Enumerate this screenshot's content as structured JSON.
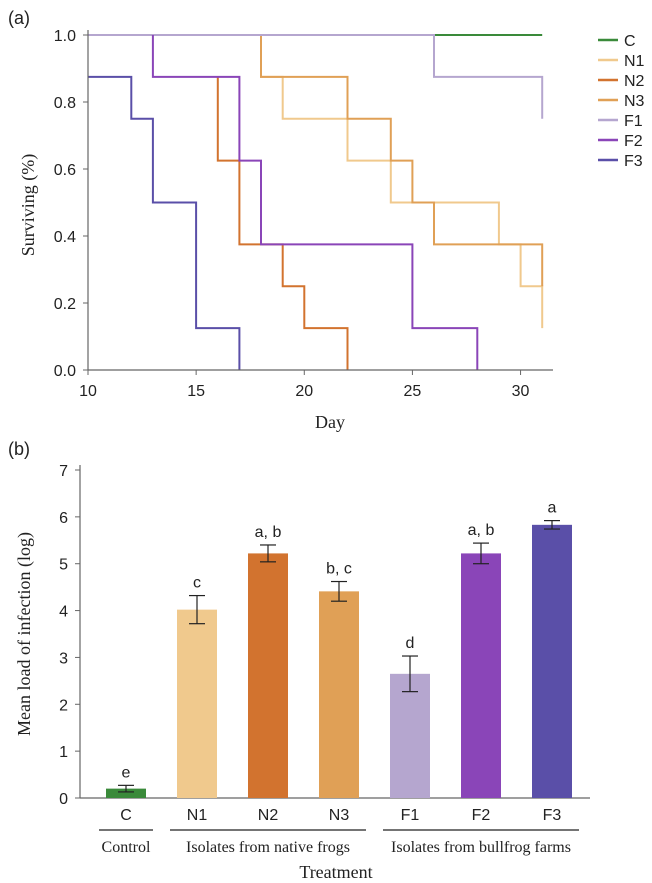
{
  "colors": {
    "C": "#3a8a3a",
    "N1": "#f0c98d",
    "N2": "#d2732f",
    "N3": "#e0a056",
    "F1": "#b5a6cf",
    "F2": "#8a45b8",
    "F3": "#5a4fa8"
  },
  "chart_data": [
    {
      "panel_label": "(a)",
      "type": "line",
      "xlabel": "Day",
      "ylabel": "Surviving (%)",
      "xlim": [
        10,
        31.5
      ],
      "ylim": [
        0,
        1.0
      ],
      "xticks": [
        10,
        15,
        20,
        25,
        30
      ],
      "yticks": [
        "0.0",
        "0.2",
        "0.4",
        "0.6",
        "0.8",
        "1.0"
      ],
      "legend_position": "right",
      "series": [
        {
          "name": "C",
          "color": "#3a8a3a",
          "steps": [
            [
              10,
              1.0
            ],
            [
              31,
              1.0
            ]
          ]
        },
        {
          "name": "N1",
          "color": "#f0c98d",
          "steps": [
            [
              18,
              1.0
            ],
            [
              18,
              0.875
            ],
            [
              19,
              0.875
            ],
            [
              19,
              0.75
            ],
            [
              22,
              0.75
            ],
            [
              22,
              0.625
            ],
            [
              24,
              0.625
            ],
            [
              24,
              0.5
            ],
            [
              26,
              0.5
            ],
            [
              29,
              0.5
            ],
            [
              29,
              0.375
            ],
            [
              30,
              0.375
            ],
            [
              30,
              0.25
            ],
            [
              31,
              0.25
            ],
            [
              31,
              0.125
            ]
          ]
        },
        {
          "name": "N2",
          "color": "#d2732f",
          "steps": [
            [
              16,
              0.875
            ],
            [
              16,
              0.625
            ],
            [
              17,
              0.625
            ],
            [
              17,
              0.375
            ],
            [
              19,
              0.375
            ],
            [
              19,
              0.25
            ],
            [
              20,
              0.25
            ],
            [
              20,
              0.125
            ],
            [
              22,
              0.125
            ],
            [
              22,
              0.0
            ]
          ]
        },
        {
          "name": "N3",
          "color": "#e0a056",
          "steps": [
            [
              18,
              1.0
            ],
            [
              18,
              0.875
            ],
            [
              22,
              0.875
            ],
            [
              22,
              0.75
            ],
            [
              24,
              0.75
            ],
            [
              24,
              0.625
            ],
            [
              25,
              0.625
            ],
            [
              25,
              0.5
            ],
            [
              26,
              0.5
            ],
            [
              26,
              0.375
            ],
            [
              31,
              0.375
            ],
            [
              31,
              0.25
            ]
          ]
        },
        {
          "name": "F1",
          "color": "#b5a6cf",
          "steps": [
            [
              10,
              1.0
            ],
            [
              26,
              1.0
            ],
            [
              26,
              0.875
            ],
            [
              31,
              0.875
            ],
            [
              31,
              0.75
            ]
          ]
        },
        {
          "name": "F2",
          "color": "#8a45b8",
          "steps": [
            [
              13,
              1.0
            ],
            [
              13,
              0.875
            ],
            [
              17,
              0.875
            ],
            [
              17,
              0.625
            ],
            [
              18,
              0.625
            ],
            [
              18,
              0.375
            ],
            [
              25,
              0.375
            ],
            [
              25,
              0.125
            ],
            [
              28,
              0.125
            ],
            [
              28,
              0.0
            ]
          ]
        },
        {
          "name": "F3",
          "color": "#5a4fa8",
          "steps": [
            [
              10,
              0.875
            ],
            [
              12,
              0.875
            ],
            [
              12,
              0.75
            ],
            [
              13,
              0.75
            ],
            [
              13,
              0.5
            ],
            [
              15,
              0.5
            ],
            [
              15,
              0.125
            ],
            [
              17,
              0.125
            ],
            [
              17,
              0.0
            ]
          ]
        }
      ]
    },
    {
      "panel_label": "(b)",
      "type": "bar",
      "xlabel": "Treatment",
      "ylabel": "Mean load of infection (log)",
      "ylim": [
        0,
        7
      ],
      "yticks": [
        "0",
        "1",
        "2",
        "3",
        "4",
        "5",
        "6",
        "7"
      ],
      "categories": [
        "C",
        "N1",
        "N2",
        "N3",
        "F1",
        "F2",
        "F3"
      ],
      "values": [
        0.2,
        4.02,
        5.22,
        4.41,
        2.65,
        5.22,
        5.83
      ],
      "errors": [
        0.07,
        0.3,
        0.18,
        0.21,
        0.38,
        0.22,
        0.09
      ],
      "significance": [
        "e",
        "c",
        "a, b",
        "b, c",
        "d",
        "a, b",
        "a"
      ],
      "groups": [
        {
          "label": "Control",
          "from": 0,
          "to": 0
        },
        {
          "label": "Isolates from native frogs",
          "from": 1,
          "to": 3
        },
        {
          "label": "Isolates from bullfrog farms",
          "from": 4,
          "to": 6
        }
      ]
    }
  ]
}
